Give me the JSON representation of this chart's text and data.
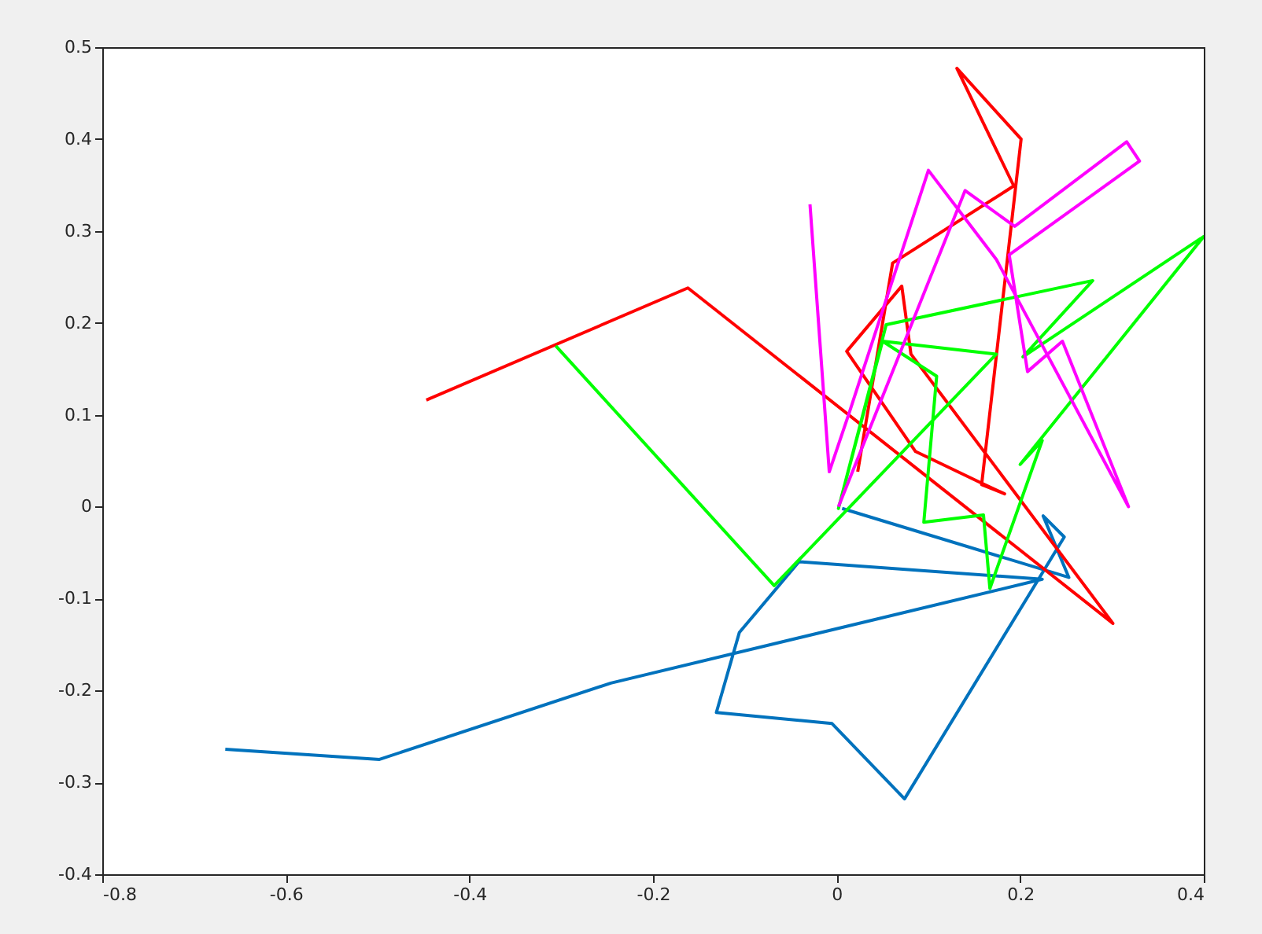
{
  "chart_data": {
    "type": "line",
    "xlim": [
      -0.8,
      0.4
    ],
    "ylim": [
      -0.4,
      0.5
    ],
    "xticks": [
      -0.8,
      -0.6,
      -0.4,
      -0.2,
      0,
      0.2,
      0.4
    ],
    "yticks": [
      -0.4,
      -0.3,
      -0.2,
      -0.1,
      0,
      0.1,
      0.2,
      0.3,
      0.4,
      0.5
    ],
    "line_style": "solid",
    "series": [
      {
        "color": "#0072bd",
        "x": [
          -0.666,
          -0.498,
          -0.246,
          0.224,
          -0.041,
          -0.106,
          -0.131,
          -0.005,
          0.074,
          0.248,
          0.225,
          0.253,
          0.006
        ],
        "values": [
          -0.264,
          -0.275,
          -0.192,
          -0.079,
          -0.06,
          -0.137,
          -0.224,
          -0.236,
          -0.318,
          -0.033,
          -0.01,
          -0.077,
          -0.002
        ]
      },
      {
        "color": "#ff0000",
        "x": [
          -0.447,
          -0.162,
          0.301,
          0.081,
          0.071,
          0.011,
          0.086,
          0.157,
          0.183,
          0.158,
          0.201,
          0.131,
          0.193,
          0.061,
          0.023
        ],
        "values": [
          0.116,
          0.238,
          -0.127,
          0.166,
          0.24,
          0.169,
          0.06,
          0.026,
          0.014,
          0.024,
          0.4,
          0.477,
          0.349,
          0.265,
          0.038
        ]
      },
      {
        "color": "#00ff00",
        "x": [
          -0.306,
          -0.068,
          0.174,
          0.05,
          0.109,
          0.095,
          0.16,
          0.167,
          0.224,
          0.2,
          0.4,
          0.203,
          0.279,
          0.054,
          0.002,
          0.05
        ],
        "values": [
          0.175,
          -0.086,
          0.166,
          0.18,
          0.142,
          -0.017,
          -0.009,
          -0.089,
          0.072,
          0.046,
          0.294,
          0.163,
          0.246,
          0.198,
          -0.002,
          0.18
        ]
      },
      {
        "color": "#ff00ff",
        "x": [
          -0.029,
          -0.008,
          0.014,
          0.1,
          0.174,
          0.318,
          0.246,
          0.208,
          0.188,
          0.33,
          0.316,
          0.194,
          0.14,
          0.002
        ],
        "values": [
          0.329,
          0.038,
          0.103,
          0.366,
          0.269,
          0.0,
          0.18,
          0.147,
          0.274,
          0.376,
          0.397,
          0.305,
          0.344,
          0.0
        ]
      }
    ]
  }
}
